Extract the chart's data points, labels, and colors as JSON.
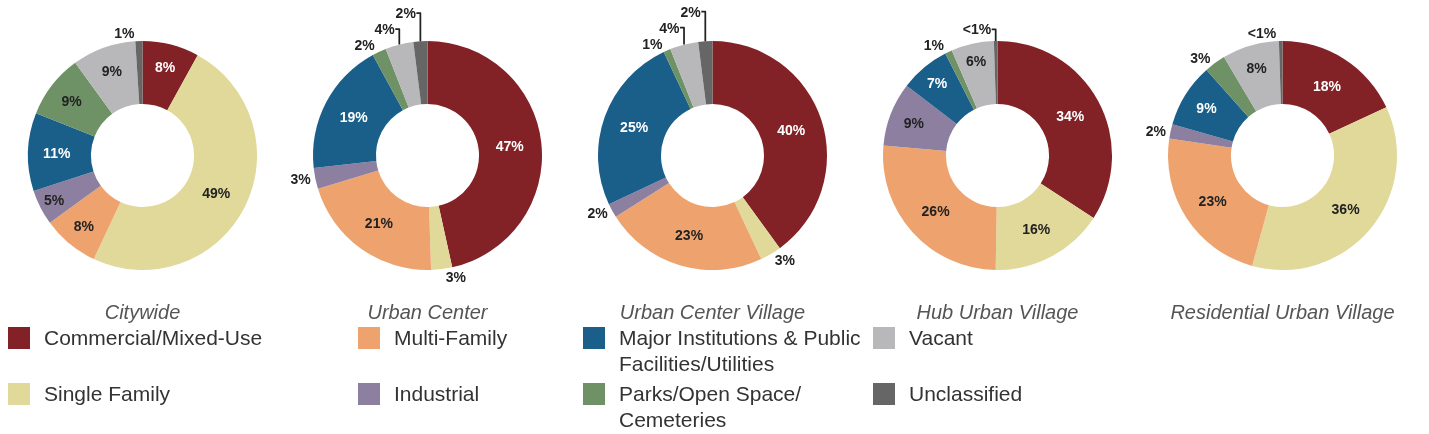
{
  "chart_data": [
    {
      "type": "donut",
      "title": "Citywide",
      "legend": "bottom",
      "categories": [
        "Commercial/Mixed-Use",
        "Single Family",
        "Multi-Family",
        "Industrial",
        "Major Institutions & Public Facilities/Utilities",
        "Parks/Open Space/ Cemeteries",
        "Vacant",
        "Unclassified"
      ],
      "colors": [
        "#832226",
        "#e0d99a",
        "#eea36f",
        "#8d7fa0",
        "#1a5e8a",
        "#6e9165",
        "#b8b8bb",
        "#666666"
      ],
      "values": [
        8,
        49,
        8,
        5,
        11,
        9,
        9,
        1
      ],
      "value_labels": [
        "8%",
        "49%",
        "8%",
        "5%",
        "11%",
        "9%",
        "9%",
        "1%"
      ]
    },
    {
      "type": "donut",
      "title": "Urban Center",
      "categories": [
        null,
        null,
        null,
        null,
        null,
        null,
        null,
        null
      ],
      "colors": [
        "#832226",
        "#e0d99a",
        "#eea36f",
        "#8d7fa0",
        "#1a5e8a",
        "#6e9165",
        "#b8b8bb",
        "#666666"
      ],
      "values": [
        47,
        3,
        21,
        3,
        19,
        2,
        4,
        2
      ],
      "value_labels": [
        "47%",
        "3%",
        "21%",
        "3%",
        "19%",
        "2%",
        "4%",
        "2%"
      ]
    },
    {
      "type": "donut",
      "title": "Urban Center Village",
      "categories": [
        null,
        null,
        null,
        null,
        null,
        null,
        null,
        null
      ],
      "colors": [
        "#832226",
        "#e0d99a",
        "#eea36f",
        "#8d7fa0",
        "#1a5e8a",
        "#6e9165",
        "#b8b8bb",
        "#666666"
      ],
      "values": [
        40,
        3,
        23,
        2,
        25,
        1,
        4,
        2
      ],
      "value_labels": [
        "40%",
        "3%",
        "23%",
        "2%",
        "25%",
        "1%",
        "4%",
        "2%"
      ]
    },
    {
      "type": "donut",
      "title": "Hub Urban Village",
      "categories": [
        null,
        null,
        null,
        null,
        null,
        null,
        null,
        null
      ],
      "colors": [
        "#832226",
        "#e0d99a",
        "#eea36f",
        "#8d7fa0",
        "#1a5e8a",
        "#6e9165",
        "#b8b8bb",
        "#666666"
      ],
      "values": [
        34,
        16,
        26,
        9,
        7,
        1,
        6,
        0.5
      ],
      "value_labels": [
        "34%",
        "16%",
        "26%",
        "9%",
        "7%",
        "1%",
        "6%",
        "<1%"
      ]
    },
    {
      "type": "donut",
      "title": "Residential Urban Village",
      "categories": [
        null,
        null,
        null,
        null,
        null,
        null,
        null,
        null
      ],
      "colors": [
        "#832226",
        "#e0d99a",
        "#eea36f",
        "#8d7fa0",
        "#1a5e8a",
        "#6e9165",
        "#b8b8bb",
        "#666666"
      ],
      "values": [
        18,
        36,
        23,
        2,
        9,
        3,
        8,
        0.5
      ],
      "value_labels": [
        "18%",
        "36%",
        "23%",
        "2%",
        "9%",
        "3%",
        "8%",
        "<1%"
      ]
    }
  ]
}
